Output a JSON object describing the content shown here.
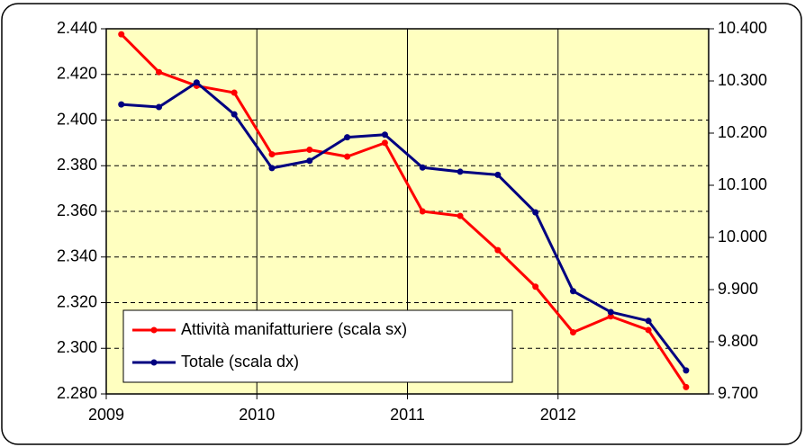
{
  "chart_data": {
    "type": "line",
    "x": [
      2009.1,
      2009.35,
      2009.6,
      2009.85,
      2010.1,
      2010.35,
      2010.6,
      2010.85,
      2011.1,
      2011.35,
      2011.6,
      2011.85,
      2012.1,
      2012.35,
      2012.6,
      2012.85
    ],
    "xlim": [
      2009,
      2013
    ],
    "xticks": [
      2009,
      2010,
      2011,
      2012
    ],
    "ylim": [
      2280,
      2440
    ],
    "yticks": [
      {
        "value": 2280,
        "label": "2.280"
      },
      {
        "value": 2300,
        "label": "2.300"
      },
      {
        "value": 2320,
        "label": "2.320"
      },
      {
        "value": 2340,
        "label": "2.340"
      },
      {
        "value": 2360,
        "label": "2.360"
      },
      {
        "value": 2380,
        "label": "2.380"
      },
      {
        "value": 2400,
        "label": "2.400"
      },
      {
        "value": 2420,
        "label": "2.420"
      },
      {
        "value": 2440,
        "label": "2.440"
      }
    ],
    "y2lim": [
      9700,
      10400
    ],
    "y2ticks": [
      {
        "value": 9700,
        "label": "9.700"
      },
      {
        "value": 9800,
        "label": "9.800"
      },
      {
        "value": 9900,
        "label": "9.900"
      },
      {
        "value": 10000,
        "label": "10.000"
      },
      {
        "value": 10100,
        "label": "10.100"
      },
      {
        "value": 10200,
        "label": "10.200"
      },
      {
        "value": 10300,
        "label": "10.300"
      },
      {
        "value": 10400,
        "label": "10.400"
      }
    ],
    "grid": true,
    "legend": "lower-left",
    "series": [
      {
        "name": "Attività manifatturiere (scala sx)",
        "color": "#ff0000",
        "values": [
          2437.6,
          2421,
          2415,
          2412,
          2385,
          2387,
          2384,
          2390,
          2360,
          2358,
          2343,
          2327,
          2307,
          2314,
          2308,
          2283
        ]
      },
      {
        "name": "Totale (scala dx)",
        "color": "#000080",
        "axis": "y2",
        "values": [
          10255,
          10250,
          10297,
          10236,
          10133,
          10147,
          10192,
          10197,
          10134,
          10126,
          10120,
          10048,
          9897,
          9857,
          9840,
          9745
        ]
      }
    ]
  }
}
